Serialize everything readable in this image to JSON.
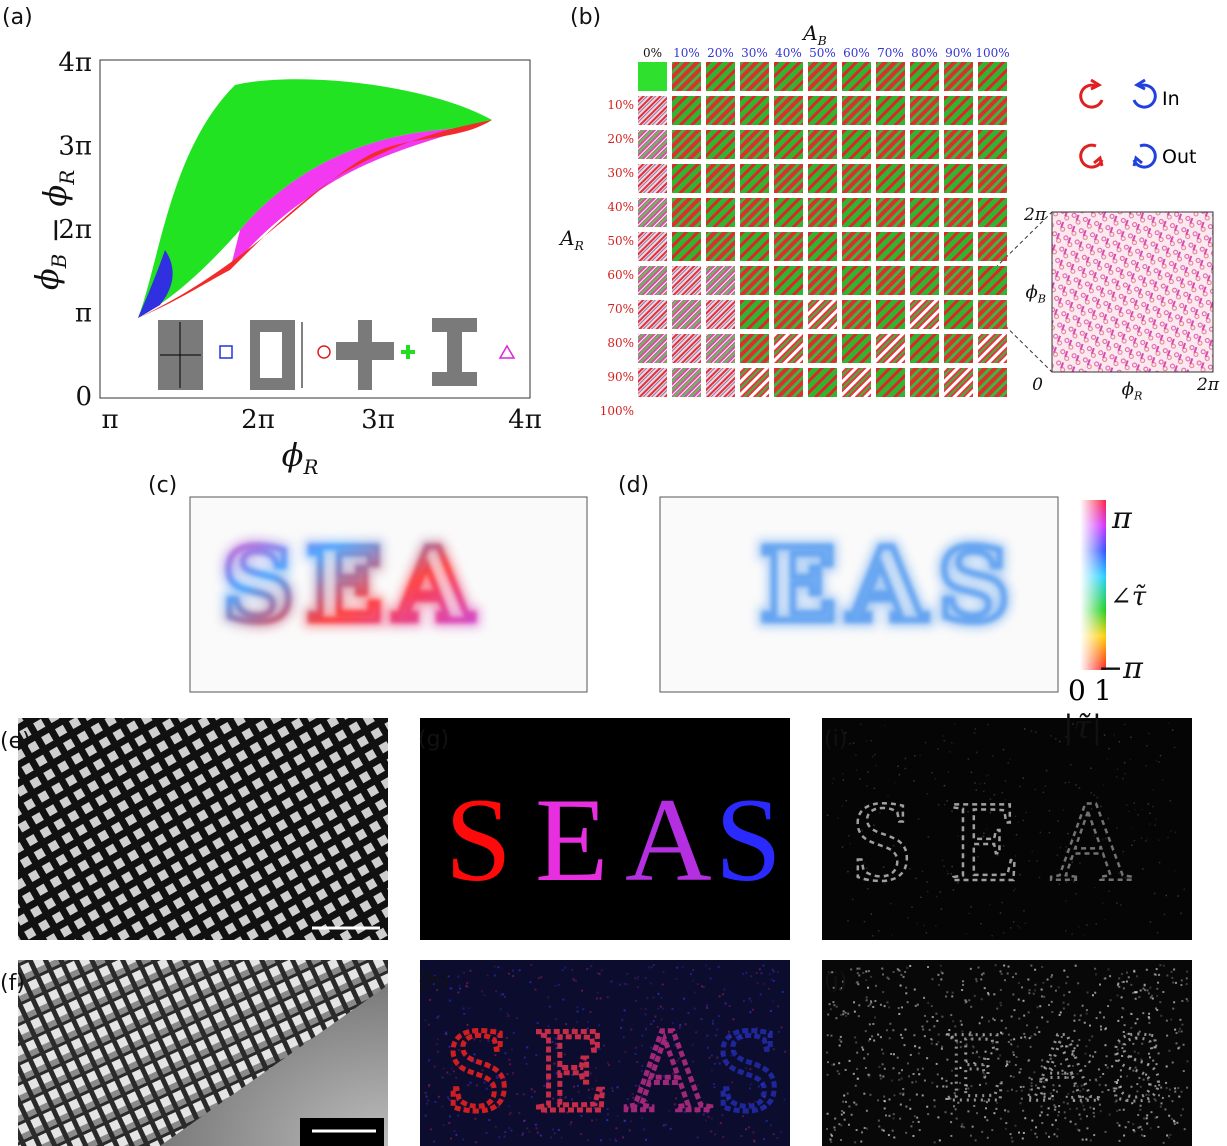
{
  "panel_a": {
    "label": "(a)",
    "y_label": [
      {
        "text": "ϕ",
        "sub": "B"
      },
      {
        "text": " − ϕ",
        "sub": "R"
      }
    ],
    "x_label": [
      {
        "text": "ϕ",
        "sub": "R"
      }
    ],
    "y_ticks": [
      "0",
      "π",
      "2π",
      "3π",
      "4π"
    ],
    "x_ticks": [
      "π",
      "2π",
      "3π",
      "4π"
    ]
  },
  "panel_b": {
    "label": "(b)",
    "col_title": [
      {
        "text": "A",
        "sub": "B"
      }
    ],
    "row_title": [
      {
        "text": "A",
        "sub": "R"
      }
    ],
    "col_labels": [
      "0%",
      "10%",
      "20%",
      "30%",
      "40%",
      "50%",
      "60%",
      "70%",
      "80%",
      "90%",
      "100%"
    ],
    "row_labels": [
      "10%",
      "20%",
      "30%",
      "40%",
      "50%",
      "60%",
      "70%",
      "80%",
      "90%",
      "100%"
    ],
    "legend": [
      "In",
      "Out"
    ],
    "inset": {
      "y_top": "2π",
      "y_label": [
        {
          "text": "ϕ",
          "sub": "B"
        }
      ],
      "origin": "0",
      "x_label": [
        {
          "text": "ϕ",
          "sub": "R"
        }
      ],
      "x_right": "2π"
    }
  },
  "panel_c": {
    "label": "(c)",
    "image_text": "SEA"
  },
  "panel_d": {
    "label": "(d)",
    "image_text": "EAS"
  },
  "colorbar": {
    "top": "π",
    "middle": "∠τ̃",
    "bottom": "−π",
    "left": "0",
    "right": "1",
    "label": "|τ̃|"
  },
  "panel_e": {
    "label": "(e)"
  },
  "panel_f": {
    "label": "(f)"
  },
  "panel_g": {
    "label": "(g)",
    "letters": [
      "S",
      "E",
      "A",
      "S"
    ]
  },
  "panel_h": {
    "label": "(h)",
    "letters": [
      "S",
      "E",
      "A",
      "S"
    ]
  },
  "panel_i": {
    "label": "(i)",
    "letters": [
      "S",
      "E",
      "A"
    ]
  },
  "panel_j": {
    "label": "(j)",
    "letters": [
      "E",
      "A",
      "S"
    ]
  }
}
